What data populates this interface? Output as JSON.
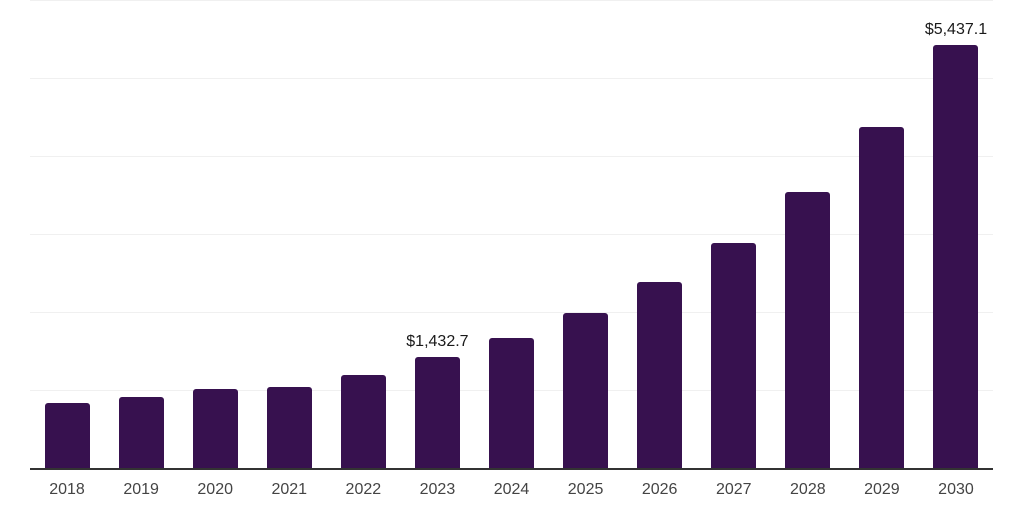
{
  "chart_data": {
    "type": "bar",
    "categories": [
      "2018",
      "2019",
      "2020",
      "2021",
      "2022",
      "2023",
      "2024",
      "2025",
      "2026",
      "2027",
      "2028",
      "2029",
      "2030"
    ],
    "values": [
      850,
      925,
      1025,
      1050,
      1205,
      1432.7,
      1675,
      2000,
      2400,
      2900,
      3550,
      4390,
      5437.1
    ],
    "labeled_points": [
      {
        "category": "2023",
        "label": "$1,432.7"
      },
      {
        "category": "2030",
        "label": "$5,437.1"
      }
    ],
    "title": "",
    "xlabel": "",
    "ylabel": "",
    "ylim": [
      0,
      6000
    ],
    "gridline_step": 1000,
    "grid": "horizontal",
    "legend": "none",
    "bar_color": "#37114F",
    "gridline_color": "#f0f0f0",
    "axis_line_color": "#333333",
    "tick_label_color": "#444444",
    "value_label_color": "#1a1a1a",
    "background": "#ffffff"
  }
}
